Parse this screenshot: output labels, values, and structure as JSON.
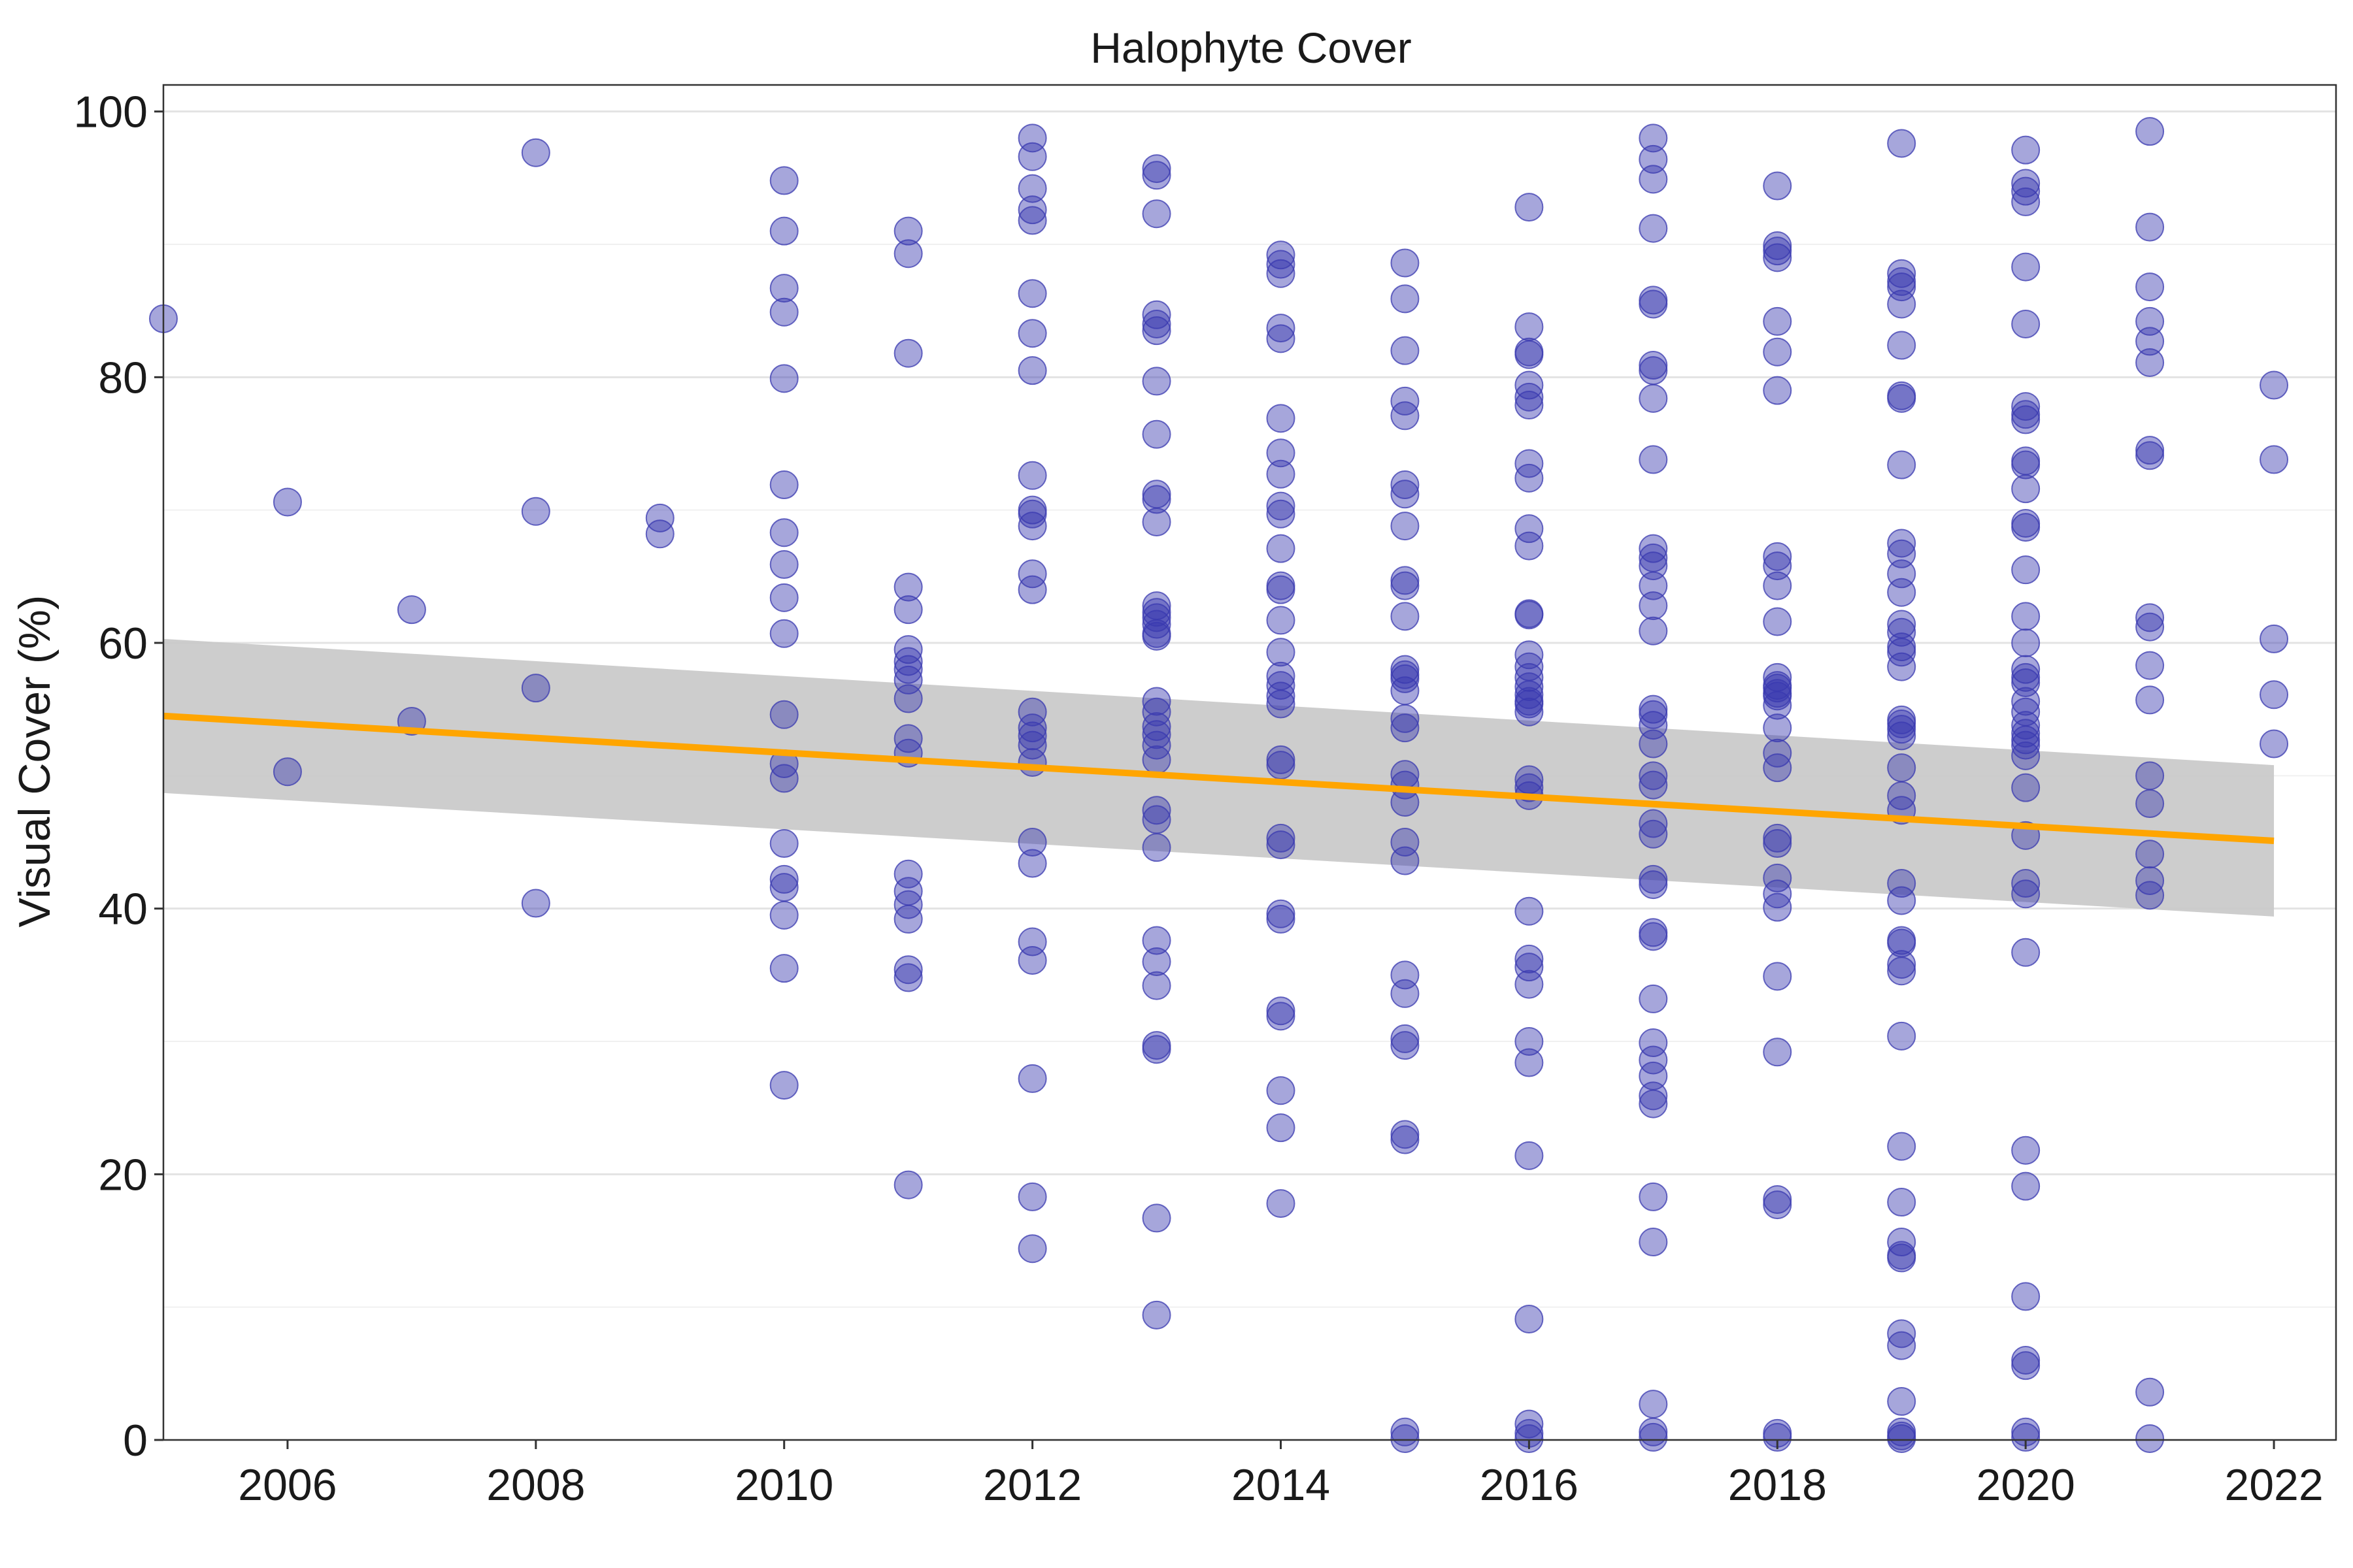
{
  "chart_data": {
    "type": "scatter",
    "title": "Halophyte Cover",
    "xlabel": "",
    "ylabel": "Visual Cover (%)",
    "xlim": [
      2005,
      2022.5
    ],
    "ylim": [
      0,
      102
    ],
    "x_ticks": [
      2006,
      2008,
      2010,
      2012,
      2014,
      2016,
      2018,
      2020,
      2022
    ],
    "y_ticks": [
      0,
      20,
      40,
      60,
      80,
      100
    ],
    "grid": true,
    "point_color": "#3a3ab0",
    "point_opacity": 0.45,
    "trend_color": "#FFA500",
    "band_color": "#c8c8c8",
    "trend": {
      "x": [
        2005,
        2022
      ],
      "y": [
        54.5,
        45.1
      ]
    },
    "confidence_band": {
      "x": [
        2005,
        2022
      ],
      "lower": [
        48.7,
        39.4
      ],
      "upper": [
        60.3,
        50.8
      ]
    },
    "points": [
      [
        2005,
        84.4
      ],
      [
        2006,
        70.6
      ],
      [
        2006,
        50.3
      ],
      [
        2007,
        62.5
      ],
      [
        2007,
        54.1
      ],
      [
        2008,
        96.9
      ],
      [
        2008,
        69.9
      ],
      [
        2008,
        56.6
      ],
      [
        2008,
        40.4
      ],
      [
        2009,
        69.4
      ],
      [
        2009,
        68.2
      ],
      [
        2010,
        94.8
      ],
      [
        2010,
        91.0
      ],
      [
        2010,
        86.7
      ],
      [
        2010,
        84.9
      ],
      [
        2010,
        79.9
      ],
      [
        2010,
        71.9
      ],
      [
        2010,
        68.3
      ],
      [
        2010,
        65.9
      ],
      [
        2010,
        63.4
      ],
      [
        2010,
        60.7
      ],
      [
        2010,
        54.6
      ],
      [
        2010,
        50.9
      ],
      [
        2010,
        49.8
      ],
      [
        2010,
        44.9
      ],
      [
        2010,
        42.2
      ],
      [
        2010,
        41.6
      ],
      [
        2010,
        39.5
      ],
      [
        2010,
        35.5
      ],
      [
        2010,
        26.7
      ],
      [
        2011,
        91.0
      ],
      [
        2011,
        89.3
      ],
      [
        2011,
        81.8
      ],
      [
        2011,
        64.2
      ],
      [
        2011,
        62.5
      ],
      [
        2011,
        59.5
      ],
      [
        2011,
        58.6
      ],
      [
        2011,
        58.0
      ],
      [
        2011,
        57.2
      ],
      [
        2011,
        55.8
      ],
      [
        2011,
        52.8
      ],
      [
        2011,
        51.7
      ],
      [
        2011,
        42.6
      ],
      [
        2011,
        41.3
      ],
      [
        2011,
        40.3
      ],
      [
        2011,
        39.2
      ],
      [
        2011,
        35.4
      ],
      [
        2011,
        34.8
      ],
      [
        2011,
        19.2
      ],
      [
        2012,
        98.0
      ],
      [
        2012,
        96.6
      ],
      [
        2012,
        94.2
      ],
      [
        2012,
        92.6
      ],
      [
        2012,
        91.8
      ],
      [
        2012,
        86.3
      ],
      [
        2012,
        83.3
      ],
      [
        2012,
        80.5
      ],
      [
        2012,
        72.6
      ],
      [
        2012,
        70.0
      ],
      [
        2012,
        69.7
      ],
      [
        2012,
        68.8
      ],
      [
        2012,
        65.2
      ],
      [
        2012,
        64.0
      ],
      [
        2012,
        54.8
      ],
      [
        2012,
        53.6
      ],
      [
        2012,
        53.0
      ],
      [
        2012,
        52.3
      ],
      [
        2012,
        51.0
      ],
      [
        2012,
        45.0
      ],
      [
        2012,
        43.4
      ],
      [
        2012,
        37.5
      ],
      [
        2012,
        36.1
      ],
      [
        2012,
        27.2
      ],
      [
        2012,
        18.3
      ],
      [
        2012,
        14.4
      ],
      [
        2013,
        95.7
      ],
      [
        2013,
        95.2
      ],
      [
        2013,
        92.3
      ],
      [
        2013,
        84.7
      ],
      [
        2013,
        84.0
      ],
      [
        2013,
        83.5
      ],
      [
        2013,
        79.7
      ],
      [
        2013,
        75.7
      ],
      [
        2013,
        71.2
      ],
      [
        2013,
        70.8
      ],
      [
        2013,
        69.1
      ],
      [
        2013,
        62.8
      ],
      [
        2013,
        62.3
      ],
      [
        2013,
        61.9
      ],
      [
        2013,
        61.4
      ],
      [
        2013,
        60.7
      ],
      [
        2013,
        60.5
      ],
      [
        2013,
        55.6
      ],
      [
        2013,
        54.8
      ],
      [
        2013,
        53.7
      ],
      [
        2013,
        53.1
      ],
      [
        2013,
        52.3
      ],
      [
        2013,
        51.2
      ],
      [
        2013,
        47.4
      ],
      [
        2013,
        46.7
      ],
      [
        2013,
        44.6
      ],
      [
        2013,
        37.6
      ],
      [
        2013,
        36.0
      ],
      [
        2013,
        34.2
      ],
      [
        2013,
        29.7
      ],
      [
        2013,
        29.4
      ],
      [
        2013,
        16.7
      ],
      [
        2013,
        9.4
      ],
      [
        2014,
        89.2
      ],
      [
        2014,
        88.5
      ],
      [
        2014,
        87.8
      ],
      [
        2014,
        83.7
      ],
      [
        2014,
        82.9
      ],
      [
        2014,
        76.9
      ],
      [
        2014,
        74.3
      ],
      [
        2014,
        72.7
      ],
      [
        2014,
        70.3
      ],
      [
        2014,
        69.7
      ],
      [
        2014,
        67.1
      ],
      [
        2014,
        64.3
      ],
      [
        2014,
        64.0
      ],
      [
        2014,
        61.7
      ],
      [
        2014,
        59.3
      ],
      [
        2014,
        57.5
      ],
      [
        2014,
        56.8
      ],
      [
        2014,
        56.0
      ],
      [
        2014,
        55.4
      ],
      [
        2014,
        51.2
      ],
      [
        2014,
        50.8
      ],
      [
        2014,
        45.3
      ],
      [
        2014,
        44.8
      ],
      [
        2014,
        39.6
      ],
      [
        2014,
        39.2
      ],
      [
        2014,
        32.3
      ],
      [
        2014,
        31.9
      ],
      [
        2014,
        26.3
      ],
      [
        2014,
        23.5
      ],
      [
        2014,
        17.8
      ],
      [
        2015,
        88.6
      ],
      [
        2015,
        85.9
      ],
      [
        2015,
        82.0
      ],
      [
        2015,
        78.2
      ],
      [
        2015,
        77.1
      ],
      [
        2015,
        71.9
      ],
      [
        2015,
        71.2
      ],
      [
        2015,
        68.8
      ],
      [
        2015,
        64.7
      ],
      [
        2015,
        64.3
      ],
      [
        2015,
        62.0
      ],
      [
        2015,
        58.0
      ],
      [
        2015,
        57.6
      ],
      [
        2015,
        57.3
      ],
      [
        2015,
        56.4
      ],
      [
        2015,
        54.3
      ],
      [
        2015,
        53.6
      ],
      [
        2015,
        50.1
      ],
      [
        2015,
        49.3
      ],
      [
        2015,
        48.0
      ],
      [
        2015,
        45.0
      ],
      [
        2015,
        43.6
      ],
      [
        2015,
        35.0
      ],
      [
        2015,
        33.6
      ],
      [
        2015,
        30.2
      ],
      [
        2015,
        29.7
      ],
      [
        2015,
        23.0
      ],
      [
        2015,
        22.6
      ],
      [
        2015,
        0.6
      ],
      [
        2015,
        0.1
      ],
      [
        2016,
        92.8
      ],
      [
        2016,
        83.8
      ],
      [
        2016,
        81.9
      ],
      [
        2016,
        81.7
      ],
      [
        2016,
        79.4
      ],
      [
        2016,
        78.5
      ],
      [
        2016,
        77.9
      ],
      [
        2016,
        73.5
      ],
      [
        2016,
        72.4
      ],
      [
        2016,
        68.6
      ],
      [
        2016,
        67.3
      ],
      [
        2016,
        62.2
      ],
      [
        2016,
        62.1
      ],
      [
        2016,
        59.1
      ],
      [
        2016,
        58.2
      ],
      [
        2016,
        57.4
      ],
      [
        2016,
        56.7
      ],
      [
        2016,
        56.1
      ],
      [
        2016,
        55.6
      ],
      [
        2016,
        55.4
      ],
      [
        2016,
        54.8
      ],
      [
        2016,
        49.7
      ],
      [
        2016,
        49.1
      ],
      [
        2016,
        48.5
      ],
      [
        2016,
        39.8
      ],
      [
        2016,
        36.2
      ],
      [
        2016,
        35.6
      ],
      [
        2016,
        34.3
      ],
      [
        2016,
        30.0
      ],
      [
        2016,
        28.4
      ],
      [
        2016,
        21.4
      ],
      [
        2016,
        9.1
      ],
      [
        2016,
        1.2
      ],
      [
        2016,
        0.5
      ],
      [
        2016,
        0.1
      ],
      [
        2017,
        98.0
      ],
      [
        2017,
        96.4
      ],
      [
        2017,
        94.9
      ],
      [
        2017,
        91.2
      ],
      [
        2017,
        85.8
      ],
      [
        2017,
        85.5
      ],
      [
        2017,
        80.9
      ],
      [
        2017,
        80.5
      ],
      [
        2017,
        78.4
      ],
      [
        2017,
        73.8
      ],
      [
        2017,
        67.1
      ],
      [
        2017,
        66.4
      ],
      [
        2017,
        65.8
      ],
      [
        2017,
        64.3
      ],
      [
        2017,
        62.8
      ],
      [
        2017,
        60.9
      ],
      [
        2017,
        55.0
      ],
      [
        2017,
        54.6
      ],
      [
        2017,
        53.8
      ],
      [
        2017,
        52.4
      ],
      [
        2017,
        50.0
      ],
      [
        2017,
        49.3
      ],
      [
        2017,
        46.4
      ],
      [
        2017,
        45.6
      ],
      [
        2017,
        42.2
      ],
      [
        2017,
        41.8
      ],
      [
        2017,
        38.2
      ],
      [
        2017,
        37.9
      ],
      [
        2017,
        33.2
      ],
      [
        2017,
        29.9
      ],
      [
        2017,
        28.6
      ],
      [
        2017,
        27.4
      ],
      [
        2017,
        25.9
      ],
      [
        2017,
        25.3
      ],
      [
        2017,
        18.3
      ],
      [
        2017,
        14.9
      ],
      [
        2017,
        2.7
      ],
      [
        2017,
        0.6
      ],
      [
        2017,
        0.2
      ],
      [
        2018,
        94.4
      ],
      [
        2018,
        89.9
      ],
      [
        2018,
        89.5
      ],
      [
        2018,
        89.0
      ],
      [
        2018,
        84.2
      ],
      [
        2018,
        81.9
      ],
      [
        2018,
        79.0
      ],
      [
        2018,
        66.5
      ],
      [
        2018,
        65.8
      ],
      [
        2018,
        64.3
      ],
      [
        2018,
        61.6
      ],
      [
        2018,
        57.4
      ],
      [
        2018,
        56.8
      ],
      [
        2018,
        56.6
      ],
      [
        2018,
        56.2
      ],
      [
        2018,
        56.0
      ],
      [
        2018,
        55.3
      ],
      [
        2018,
        53.6
      ],
      [
        2018,
        51.7
      ],
      [
        2018,
        50.6
      ],
      [
        2018,
        45.3
      ],
      [
        2018,
        44.9
      ],
      [
        2018,
        42.3
      ],
      [
        2018,
        41.1
      ],
      [
        2018,
        40.1
      ],
      [
        2018,
        34.9
      ],
      [
        2018,
        29.2
      ],
      [
        2018,
        18.1
      ],
      [
        2018,
        17.7
      ],
      [
        2018,
        0.5
      ],
      [
        2018,
        0.2
      ],
      [
        2019,
        97.6
      ],
      [
        2019,
        87.8
      ],
      [
        2019,
        87.2
      ],
      [
        2019,
        86.8
      ],
      [
        2019,
        85.5
      ],
      [
        2019,
        82.4
      ],
      [
        2019,
        78.6
      ],
      [
        2019,
        78.4
      ],
      [
        2019,
        73.4
      ],
      [
        2019,
        67.5
      ],
      [
        2019,
        66.7
      ],
      [
        2019,
        65.2
      ],
      [
        2019,
        63.8
      ],
      [
        2019,
        61.4
      ],
      [
        2019,
        60.8
      ],
      [
        2019,
        59.7
      ],
      [
        2019,
        59.3
      ],
      [
        2019,
        58.2
      ],
      [
        2019,
        54.2
      ],
      [
        2019,
        53.9
      ],
      [
        2019,
        53.5
      ],
      [
        2019,
        53.0
      ],
      [
        2019,
        50.6
      ],
      [
        2019,
        48.5
      ],
      [
        2019,
        47.4
      ],
      [
        2019,
        41.9
      ],
      [
        2019,
        40.6
      ],
      [
        2019,
        37.6
      ],
      [
        2019,
        37.4
      ],
      [
        2019,
        35.8
      ],
      [
        2019,
        35.3
      ],
      [
        2019,
        30.4
      ],
      [
        2019,
        22.1
      ],
      [
        2019,
        17.9
      ],
      [
        2019,
        14.9
      ],
      [
        2019,
        13.9
      ],
      [
        2019,
        13.7
      ],
      [
        2019,
        8.0
      ],
      [
        2019,
        7.1
      ],
      [
        2019,
        2.9
      ],
      [
        2019,
        0.6
      ],
      [
        2019,
        0.3
      ],
      [
        2019,
        0.1
      ],
      [
        2020,
        97.1
      ],
      [
        2020,
        94.6
      ],
      [
        2020,
        94.0
      ],
      [
        2020,
        93.2
      ],
      [
        2020,
        88.3
      ],
      [
        2020,
        84.0
      ],
      [
        2020,
        77.8
      ],
      [
        2020,
        77.2
      ],
      [
        2020,
        76.8
      ],
      [
        2020,
        73.7
      ],
      [
        2020,
        73.4
      ],
      [
        2020,
        71.6
      ],
      [
        2020,
        69.0
      ],
      [
        2020,
        68.7
      ],
      [
        2020,
        65.5
      ],
      [
        2020,
        62.0
      ],
      [
        2020,
        60.0
      ],
      [
        2020,
        58.0
      ],
      [
        2020,
        57.4
      ],
      [
        2020,
        57.0
      ],
      [
        2020,
        55.6
      ],
      [
        2020,
        54.8
      ],
      [
        2020,
        53.8
      ],
      [
        2020,
        53.2
      ],
      [
        2020,
        52.7
      ],
      [
        2020,
        52.3
      ],
      [
        2020,
        51.5
      ],
      [
        2020,
        49.1
      ],
      [
        2020,
        45.5
      ],
      [
        2020,
        41.9
      ],
      [
        2020,
        41.1
      ],
      [
        2020,
        36.7
      ],
      [
        2020,
        21.8
      ],
      [
        2020,
        19.1
      ],
      [
        2020,
        10.8
      ],
      [
        2020,
        6.0
      ],
      [
        2020,
        5.6
      ],
      [
        2020,
        0.6
      ],
      [
        2020,
        0.2
      ],
      [
        2021,
        98.5
      ],
      [
        2021,
        91.3
      ],
      [
        2021,
        86.8
      ],
      [
        2021,
        84.2
      ],
      [
        2021,
        82.7
      ],
      [
        2021,
        81.1
      ],
      [
        2021,
        74.5
      ],
      [
        2021,
        74.1
      ],
      [
        2021,
        61.9
      ],
      [
        2021,
        61.2
      ],
      [
        2021,
        58.3
      ],
      [
        2021,
        55.7
      ],
      [
        2021,
        50.0
      ],
      [
        2021,
        47.9
      ],
      [
        2021,
        44.1
      ],
      [
        2021,
        42.1
      ],
      [
        2021,
        41.0
      ],
      [
        2021,
        3.6
      ],
      [
        2021,
        0.1
      ],
      [
        2022,
        79.4
      ],
      [
        2022,
        73.8
      ],
      [
        2022,
        60.3
      ],
      [
        2022,
        56.1
      ],
      [
        2022,
        52.4
      ]
    ]
  }
}
